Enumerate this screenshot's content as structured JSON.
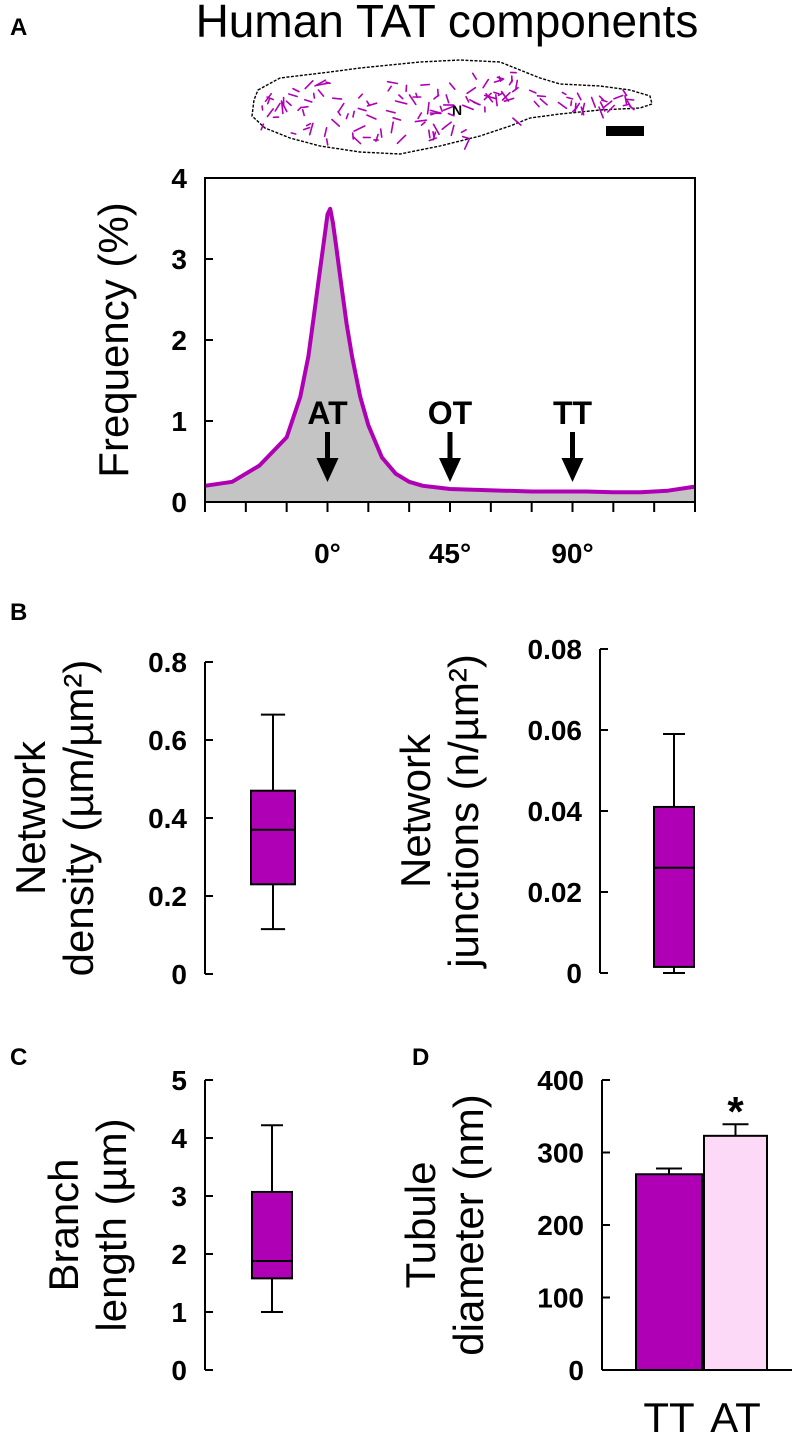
{
  "figure": {
    "title": "Human TAT components",
    "panel_labels": [
      "A",
      "B",
      "C",
      "D"
    ],
    "cell_label": "N"
  },
  "colors": {
    "magenta": "#b000b5",
    "light_pink": "#fcd9f7",
    "gray_fill": "#c4c4c4",
    "axis": "#000000"
  },
  "chart_data": [
    {
      "id": "A",
      "type": "area",
      "title": "Human TAT components",
      "ylabel": "Frequency (%)",
      "xlabel": "",
      "xlim": [
        -45,
        135
      ],
      "ylim": [
        0,
        4
      ],
      "yticks": [
        "0",
        "1",
        "2",
        "3",
        "4"
      ],
      "xtick_labels": [
        {
          "value": 0,
          "label": "0°"
        },
        {
          "value": 45,
          "label": "45°"
        },
        {
          "value": 90,
          "label": "90°"
        }
      ],
      "x": [
        -45,
        -35,
        -25,
        -15,
        -10,
        -7,
        -5,
        -3,
        -1,
        0,
        1,
        2,
        3,
        5,
        7,
        9,
        12,
        15,
        20,
        25,
        30,
        35,
        40,
        45,
        55,
        65,
        75,
        85,
        95,
        105,
        115,
        125,
        135
      ],
      "y": [
        0.2,
        0.25,
        0.45,
        0.8,
        1.3,
        1.8,
        2.3,
        2.8,
        3.3,
        3.55,
        3.62,
        3.45,
        3.2,
        2.7,
        2.2,
        1.8,
        1.3,
        0.95,
        0.55,
        0.35,
        0.25,
        0.2,
        0.18,
        0.16,
        0.15,
        0.14,
        0.13,
        0.13,
        0.13,
        0.12,
        0.12,
        0.14,
        0.19
      ],
      "annotations": [
        {
          "label": "AT",
          "x": 0
        },
        {
          "label": "OT",
          "x": 45
        },
        {
          "label": "TT",
          "x": 90
        }
      ]
    },
    {
      "id": "B-left",
      "type": "box",
      "ylabel_lines": [
        "Network",
        "density (µm/µm²)"
      ],
      "ylim": [
        0,
        0.8
      ],
      "yticks": [
        "0",
        "0.2",
        "0.4",
        "0.6",
        "0.8"
      ],
      "box": {
        "min": 0.115,
        "q1": 0.23,
        "median": 0.37,
        "q3": 0.47,
        "max": 0.665
      }
    },
    {
      "id": "B-right",
      "type": "box",
      "ylabel_lines": [
        "Network",
        "junctions (n/µm²)"
      ],
      "ylim": [
        0,
        0.08
      ],
      "yticks": [
        "0",
        "0.02",
        "0.04",
        "0.06",
        "0.08"
      ],
      "box": {
        "min": 0.0,
        "q1": 0.0015,
        "median": 0.026,
        "q3": 0.041,
        "max": 0.059
      }
    },
    {
      "id": "C",
      "type": "box",
      "ylabel_lines": [
        "Branch",
        "length (µm)"
      ],
      "ylim": [
        0,
        5
      ],
      "yticks": [
        "0",
        "1",
        "2",
        "3",
        "4",
        "5"
      ],
      "box": {
        "min": 1.0,
        "q1": 1.58,
        "median": 1.88,
        "q3": 3.07,
        "max": 4.22
      }
    },
    {
      "id": "D",
      "type": "bar",
      "ylabel_lines": [
        "Tubule",
        "diameter (nm)"
      ],
      "ylim": [
        0,
        400
      ],
      "yticks": [
        "0",
        "100",
        "200",
        "300",
        "400"
      ],
      "categories": [
        "TT",
        "AT"
      ],
      "values": [
        270,
        323
      ],
      "errors": [
        8,
        16
      ],
      "significance": "*"
    }
  ]
}
